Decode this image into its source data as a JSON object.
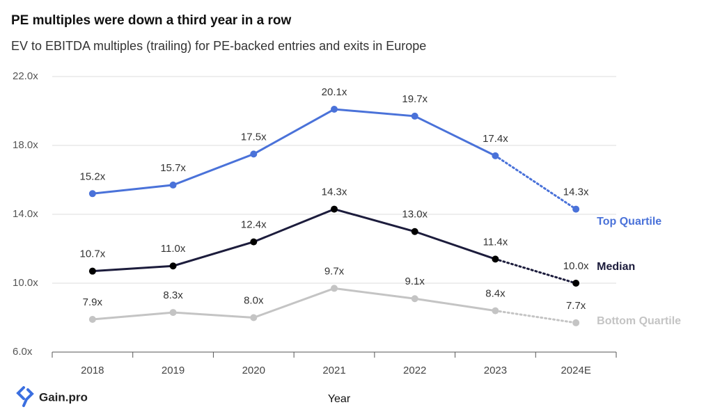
{
  "chart_data": {
    "type": "line",
    "title": "PE multiples were down a third year in a row",
    "subtitle": "EV to EBITDA multiples (trailing) for PE-backed entries and exits in Europe",
    "x_label": "Year",
    "categories": [
      "2018",
      "2019",
      "2020",
      "2021",
      "2022",
      "2023",
      "2024E"
    ],
    "series": [
      {
        "name": "Top Quartile",
        "color": "#4a72d9",
        "values": [
          15.2,
          15.7,
          17.5,
          20.1,
          19.7,
          17.4,
          14.3
        ],
        "value_labels": [
          "15.2x",
          "15.7x",
          "17.5x",
          "20.1x",
          "19.7x",
          "17.4x",
          "14.3x"
        ]
      },
      {
        "name": "Median",
        "color": "#1c1c3c",
        "values": [
          10.7,
          11.0,
          12.4,
          14.3,
          13.0,
          11.4,
          10.0
        ],
        "value_labels": [
          "10.7x",
          "11.0x",
          "12.4x",
          "14.3x",
          "13.0x",
          "11.4x",
          "10.0x"
        ]
      },
      {
        "name": "Bottom Quartile",
        "color": "#c4c4c4",
        "values": [
          7.9,
          8.3,
          8.0,
          9.7,
          9.1,
          8.4,
          7.7
        ],
        "value_labels": [
          "7.9x",
          "8.3x",
          "8.0x",
          "9.7x",
          "9.1x",
          "8.4x",
          "7.7x"
        ]
      }
    ],
    "ylim": [
      6,
      22
    ],
    "yticks": [
      {
        "value": 6,
        "label": "6.0x"
      },
      {
        "value": 10,
        "label": "10.0x"
      },
      {
        "value": 14,
        "label": "14.0x"
      },
      {
        "value": 18,
        "label": "18.0x"
      },
      {
        "value": 22,
        "label": "22.0x"
      }
    ],
    "grid": true,
    "last_segment_dotted": true
  },
  "brand": "Gain.pro"
}
